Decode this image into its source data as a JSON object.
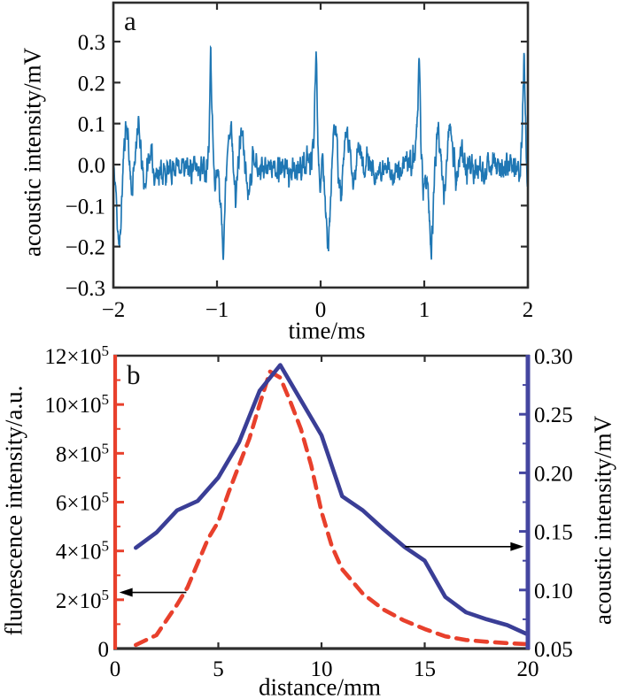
{
  "figure": {
    "background": "#ffffff",
    "panels": {
      "a": {
        "letter": "a",
        "xlabel": "time/ms",
        "ylabel": "acoustic intensity/mV"
      },
      "b": {
        "letter": "b",
        "xlabel": "distance/mm",
        "ylabel_left": "fluorescence intensity/a.u.",
        "ylabel_right": "acoustic intensity/mV"
      }
    }
  },
  "chart_data": [
    {
      "id": "a",
      "type": "line",
      "title": "",
      "xlabel": "time/ms",
      "ylabel": "acoustic intensity/mV",
      "xlim": [
        -2,
        2
      ],
      "ylim": [
        -0.3,
        0.395
      ],
      "grid": false,
      "xticks": [
        -2,
        -1,
        0,
        1,
        2
      ],
      "xtick_labels": [
        "−2",
        "−1",
        "0",
        "1",
        "2"
      ],
      "yticks": [
        0.3,
        0.2,
        0.1,
        0,
        -0.1,
        -0.2,
        -0.3
      ],
      "ytick_labels": [
        "0.3",
        "0.2",
        "0.1",
        "0.0",
        "−0.1",
        "−0.2",
        "−0.3"
      ],
      "line_color": "#1f77b4",
      "spine_color": "#2e2e2e",
      "signal": {
        "description": "periodic bipolar ultrasound spikes (~1 ms period) riding on ~±0.04 mV noise",
        "period_ms": 1.0,
        "spike_centers_ms": [
          -2.06,
          -1.06,
          -0.045,
          0.95,
          1.963
        ],
        "peak_mV": 0.295,
        "trough_mV": -0.225,
        "shape_start_dt_ms": -0.04,
        "shape_step_ms": 0.02,
        "shape": [
          0.01,
          0.06,
          0.295,
          0.05,
          -0.08,
          -0.02,
          -0.06,
          -0.15,
          -0.225,
          -0.1,
          0.02,
          0.095,
          0.06,
          -0.03,
          -0.09,
          -0.04,
          0.04,
          0.075,
          0.03,
          -0.02,
          -0.055,
          -0.02,
          0.02,
          0.04,
          0.01,
          -0.02,
          -0.01,
          0.0
        ],
        "noise_amplitude_mV": 0.048,
        "noise_seed": 11,
        "samples": 1600
      }
    },
    {
      "id": "b",
      "type": "line",
      "title": "",
      "xlabel": "distance/mm",
      "xlim": [
        0,
        20
      ],
      "grid": false,
      "xticks": [
        0,
        5,
        10,
        15,
        20
      ],
      "xtick_labels": [
        "0",
        "5",
        "10",
        "15",
        "20"
      ],
      "spine_color": "#2e2e2e",
      "left_axis": {
        "label": "fluorescence intensity/a.u.",
        "color": "#e8402c",
        "lim": [
          0,
          1200000
        ],
        "ticks": [
          0,
          200000,
          400000,
          600000,
          800000,
          1000000,
          1200000
        ],
        "tick_labels": [
          "0",
          "2×10^5",
          "4×10^5",
          "6×10^5",
          "8×10^5",
          "10×10^5",
          "12×10^5"
        ],
        "minor_ticks": [
          100000,
          300000,
          500000,
          700000,
          900000,
          1100000
        ]
      },
      "right_axis": {
        "label": "acoustic intensity/mV",
        "color": "#4446a0",
        "lim": [
          0.05,
          0.3
        ],
        "ticks": [
          0.05,
          0.1,
          0.15,
          0.2,
          0.25,
          0.3
        ],
        "tick_labels": [
          "0.05",
          "0.10",
          "0.15",
          "0.20",
          "0.25",
          "0.30"
        ],
        "minor_ticks": [
          0.075,
          0.125,
          0.175,
          0.225,
          0.275
        ]
      },
      "series": [
        {
          "name": "fluorescence intensity",
          "axis": "left",
          "style": "dashed",
          "color": "#e8402c",
          "x": [
            1,
            2,
            3,
            3.5,
            4,
            4.5,
            5,
            5.5,
            6,
            6.5,
            7,
            7.5,
            8,
            8.5,
            9,
            9.5,
            10,
            10.5,
            11,
            12,
            13,
            14,
            15,
            16,
            17,
            18,
            19,
            20
          ],
          "values": [
            15000,
            55000,
            180000,
            250000,
            350000,
            450000,
            520000,
            640000,
            750000,
            860000,
            1000000,
            1135000,
            1110000,
            1010000,
            900000,
            750000,
            560000,
            420000,
            325000,
            225000,
            160000,
            115000,
            80000,
            50000,
            35000,
            28000,
            22000,
            18000
          ]
        },
        {
          "name": "acoustic intensity",
          "axis": "right",
          "style": "solid",
          "color": "#3a3e96",
          "x": [
            1,
            2,
            3,
            4,
            5,
            6,
            7,
            8,
            9,
            10,
            11,
            12,
            13,
            14,
            15,
            16,
            17,
            18,
            19,
            20
          ],
          "values": [
            0.136,
            0.149,
            0.168,
            0.176,
            0.196,
            0.226,
            0.27,
            0.292,
            0.262,
            0.232,
            0.18,
            0.168,
            0.152,
            0.137,
            0.125,
            0.094,
            0.081,
            0.075,
            0.07,
            0.062
          ]
        }
      ],
      "annotations": [
        {
          "label": "dashed-curve-reads-left-axis",
          "axis": "left",
          "value": 230000,
          "from_x_mm": 3.45,
          "to_x_mm": 0.2
        },
        {
          "label": "solid-curve-reads-right-axis",
          "axis": "right",
          "value": 0.137,
          "from_x_mm": 14.05,
          "to_x_mm": 19.8
        }
      ]
    }
  ]
}
